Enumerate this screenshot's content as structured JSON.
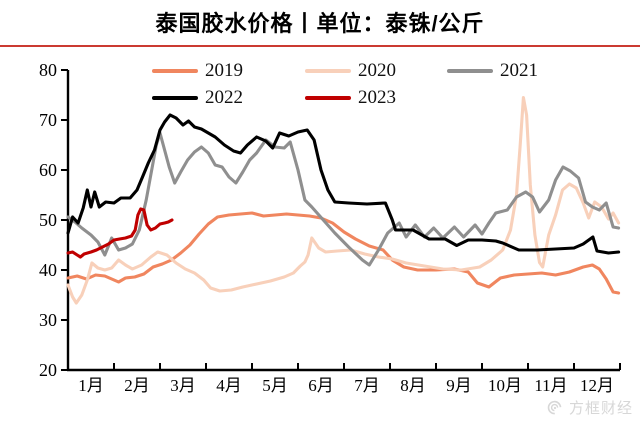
{
  "title": "泰国胶水价格丨单位：泰铢/公斤",
  "title_underline_color": "#cb3a31",
  "watermark": {
    "icon": "swirl-logo-icon",
    "text": "方框财经"
  },
  "chart_data": {
    "type": "line",
    "title": "泰国胶水价格丨单位：泰铢/公斤",
    "xlabel": "",
    "ylabel": "泰铢/公斤",
    "x_unit": "month-of-year",
    "x_tick_labels": [
      "1月",
      "2月",
      "3月",
      "4月",
      "5月",
      "6月",
      "7月",
      "8月",
      "9月",
      "10月",
      "11月",
      "12月"
    ],
    "y_ticks": [
      20,
      30,
      40,
      50,
      60,
      70,
      80
    ],
    "ylim": [
      20,
      80
    ],
    "xlim_months": [
      0,
      12
    ],
    "grid": false,
    "legend_position": "top-inside",
    "axis_color": "#000000",
    "series": [
      {
        "name": "2019",
        "color": "#f0865f",
        "points": [
          [
            0.0,
            38.4
          ],
          [
            0.2,
            38.8
          ],
          [
            0.4,
            38.2
          ],
          [
            0.6,
            39.0
          ],
          [
            0.8,
            38.8
          ],
          [
            1.0,
            38.0
          ],
          [
            1.1,
            37.6
          ],
          [
            1.25,
            38.4
          ],
          [
            1.45,
            38.6
          ],
          [
            1.65,
            39.2
          ],
          [
            1.85,
            40.6
          ],
          [
            2.05,
            41.2
          ],
          [
            2.25,
            42.0
          ],
          [
            2.45,
            43.4
          ],
          [
            2.65,
            45.0
          ],
          [
            2.85,
            47.2
          ],
          [
            3.05,
            49.2
          ],
          [
            3.25,
            50.6
          ],
          [
            3.5,
            51.0
          ],
          [
            3.75,
            51.2
          ],
          [
            4.0,
            51.4
          ],
          [
            4.25,
            50.8
          ],
          [
            4.5,
            51.0
          ],
          [
            4.75,
            51.2
          ],
          [
            5.0,
            51.0
          ],
          [
            5.25,
            50.8
          ],
          [
            5.5,
            50.4
          ],
          [
            5.75,
            49.4
          ],
          [
            6.0,
            47.6
          ],
          [
            6.25,
            46.2
          ],
          [
            6.55,
            44.8
          ],
          [
            6.85,
            44.0
          ],
          [
            7.05,
            42.0
          ],
          [
            7.3,
            40.6
          ],
          [
            7.6,
            40.0
          ],
          [
            8.0,
            40.0
          ],
          [
            8.4,
            40.2
          ],
          [
            8.7,
            39.6
          ],
          [
            8.9,
            37.4
          ],
          [
            9.15,
            36.6
          ],
          [
            9.4,
            38.4
          ],
          [
            9.7,
            39.0
          ],
          [
            10.0,
            39.2
          ],
          [
            10.3,
            39.4
          ],
          [
            10.6,
            39.0
          ],
          [
            10.9,
            39.6
          ],
          [
            11.2,
            40.6
          ],
          [
            11.4,
            41.0
          ],
          [
            11.55,
            40.2
          ],
          [
            11.7,
            38.2
          ],
          [
            11.85,
            35.6
          ],
          [
            11.97,
            35.4
          ]
        ]
      },
      {
        "name": "2020",
        "color": "#f8d0ba",
        "points": [
          [
            0.0,
            37.0
          ],
          [
            0.1,
            34.6
          ],
          [
            0.18,
            33.4
          ],
          [
            0.3,
            35.0
          ],
          [
            0.42,
            38.0
          ],
          [
            0.52,
            41.4
          ],
          [
            0.65,
            40.4
          ],
          [
            0.8,
            40.0
          ],
          [
            0.95,
            40.4
          ],
          [
            1.1,
            42.0
          ],
          [
            1.25,
            41.0
          ],
          [
            1.4,
            40.2
          ],
          [
            1.6,
            41.0
          ],
          [
            1.8,
            42.6
          ],
          [
            1.95,
            43.6
          ],
          [
            2.15,
            43.0
          ],
          [
            2.35,
            41.4
          ],
          [
            2.55,
            40.2
          ],
          [
            2.75,
            39.4
          ],
          [
            2.95,
            38.0
          ],
          [
            3.1,
            36.4
          ],
          [
            3.3,
            35.8
          ],
          [
            3.55,
            36.0
          ],
          [
            3.8,
            36.6
          ],
          [
            4.1,
            37.2
          ],
          [
            4.4,
            37.8
          ],
          [
            4.7,
            38.6
          ],
          [
            4.9,
            39.4
          ],
          [
            5.05,
            40.8
          ],
          [
            5.15,
            41.6
          ],
          [
            5.22,
            43.0
          ],
          [
            5.3,
            46.4
          ],
          [
            5.45,
            44.4
          ],
          [
            5.6,
            43.6
          ],
          [
            5.85,
            43.8
          ],
          [
            6.15,
            44.0
          ],
          [
            6.45,
            43.2
          ],
          [
            6.75,
            42.6
          ],
          [
            7.05,
            42.2
          ],
          [
            7.35,
            41.4
          ],
          [
            7.75,
            40.8
          ],
          [
            8.15,
            40.2
          ],
          [
            8.55,
            40.0
          ],
          [
            8.95,
            40.6
          ],
          [
            9.2,
            42.0
          ],
          [
            9.45,
            44.0
          ],
          [
            9.62,
            48.0
          ],
          [
            9.75,
            55.0
          ],
          [
            9.83,
            65.0
          ],
          [
            9.9,
            74.5
          ],
          [
            9.97,
            71.0
          ],
          [
            10.05,
            57.0
          ],
          [
            10.15,
            47.0
          ],
          [
            10.25,
            41.5
          ],
          [
            10.32,
            40.6
          ],
          [
            10.45,
            47.0
          ],
          [
            10.6,
            51.0
          ],
          [
            10.75,
            56.0
          ],
          [
            10.9,
            57.2
          ],
          [
            11.05,
            56.4
          ],
          [
            11.2,
            53.4
          ],
          [
            11.32,
            50.4
          ],
          [
            11.45,
            53.6
          ],
          [
            11.6,
            52.6
          ],
          [
            11.75,
            50.2
          ],
          [
            11.85,
            51.4
          ],
          [
            11.97,
            49.4
          ]
        ]
      },
      {
        "name": "2021",
        "color": "#8f8f8f",
        "points": [
          [
            0.0,
            50.6
          ],
          [
            0.15,
            49.6
          ],
          [
            0.3,
            48.4
          ],
          [
            0.5,
            47.0
          ],
          [
            0.65,
            45.6
          ],
          [
            0.8,
            43.0
          ],
          [
            0.95,
            46.4
          ],
          [
            1.1,
            44.0
          ],
          [
            1.25,
            44.4
          ],
          [
            1.4,
            45.2
          ],
          [
            1.55,
            48.0
          ],
          [
            1.7,
            54.0
          ],
          [
            1.82,
            60.0
          ],
          [
            1.92,
            65.0
          ],
          [
            2.0,
            67.4
          ],
          [
            2.1,
            64.0
          ],
          [
            2.2,
            60.6
          ],
          [
            2.32,
            57.4
          ],
          [
            2.45,
            59.6
          ],
          [
            2.6,
            62.0
          ],
          [
            2.75,
            63.6
          ],
          [
            2.9,
            64.6
          ],
          [
            3.05,
            63.4
          ],
          [
            3.2,
            61.0
          ],
          [
            3.35,
            60.6
          ],
          [
            3.5,
            58.6
          ],
          [
            3.65,
            57.4
          ],
          [
            3.8,
            59.6
          ],
          [
            3.95,
            62.0
          ],
          [
            4.1,
            63.4
          ],
          [
            4.3,
            66.0
          ],
          [
            4.5,
            64.6
          ],
          [
            4.7,
            64.4
          ],
          [
            4.83,
            65.6
          ],
          [
            5.0,
            60.0
          ],
          [
            5.15,
            54.0
          ],
          [
            5.3,
            52.6
          ],
          [
            5.55,
            50.0
          ],
          [
            5.8,
            47.4
          ],
          [
            6.1,
            44.6
          ],
          [
            6.4,
            42.0
          ],
          [
            6.55,
            41.0
          ],
          [
            6.75,
            44.0
          ],
          [
            6.95,
            47.4
          ],
          [
            7.2,
            49.4
          ],
          [
            7.35,
            46.6
          ],
          [
            7.55,
            49.0
          ],
          [
            7.75,
            46.6
          ],
          [
            7.95,
            48.4
          ],
          [
            8.15,
            46.4
          ],
          [
            8.4,
            48.6
          ],
          [
            8.6,
            46.6
          ],
          [
            8.85,
            49.0
          ],
          [
            9.0,
            47.2
          ],
          [
            9.15,
            49.4
          ],
          [
            9.3,
            51.4
          ],
          [
            9.55,
            52.0
          ],
          [
            9.75,
            54.6
          ],
          [
            9.95,
            55.6
          ],
          [
            10.1,
            54.6
          ],
          [
            10.25,
            51.6
          ],
          [
            10.45,
            54.0
          ],
          [
            10.6,
            58.0
          ],
          [
            10.76,
            60.6
          ],
          [
            10.92,
            59.8
          ],
          [
            11.1,
            58.4
          ],
          [
            11.25,
            53.6
          ],
          [
            11.4,
            52.6
          ],
          [
            11.55,
            52.0
          ],
          [
            11.7,
            53.4
          ],
          [
            11.85,
            48.6
          ],
          [
            11.97,
            48.4
          ]
        ]
      },
      {
        "name": "2022",
        "color": "#000000",
        "points": [
          [
            0.0,
            47.4
          ],
          [
            0.1,
            50.6
          ],
          [
            0.22,
            49.4
          ],
          [
            0.33,
            52.4
          ],
          [
            0.42,
            56.0
          ],
          [
            0.5,
            52.6
          ],
          [
            0.58,
            55.6
          ],
          [
            0.68,
            52.6
          ],
          [
            0.82,
            53.6
          ],
          [
            1.0,
            53.4
          ],
          [
            1.15,
            54.4
          ],
          [
            1.35,
            54.4
          ],
          [
            1.5,
            56.0
          ],
          [
            1.62,
            58.6
          ],
          [
            1.75,
            61.5
          ],
          [
            1.88,
            64.0
          ],
          [
            2.0,
            68.0
          ],
          [
            2.1,
            69.6
          ],
          [
            2.22,
            71.0
          ],
          [
            2.35,
            70.4
          ],
          [
            2.5,
            69.0
          ],
          [
            2.62,
            69.8
          ],
          [
            2.75,
            68.6
          ],
          [
            2.9,
            68.2
          ],
          [
            3.05,
            67.4
          ],
          [
            3.2,
            66.6
          ],
          [
            3.4,
            65.0
          ],
          [
            3.6,
            63.8
          ],
          [
            3.75,
            63.4
          ],
          [
            3.9,
            65.0
          ],
          [
            4.1,
            66.6
          ],
          [
            4.3,
            65.8
          ],
          [
            4.45,
            64.4
          ],
          [
            4.6,
            67.4
          ],
          [
            4.8,
            66.8
          ],
          [
            5.0,
            67.6
          ],
          [
            5.2,
            68.0
          ],
          [
            5.35,
            66.0
          ],
          [
            5.5,
            60.0
          ],
          [
            5.65,
            56.0
          ],
          [
            5.8,
            53.6
          ],
          [
            6.1,
            53.4
          ],
          [
            6.5,
            53.2
          ],
          [
            6.9,
            53.4
          ],
          [
            7.05,
            50.0
          ],
          [
            7.12,
            48.0
          ],
          [
            7.5,
            48.0
          ],
          [
            7.85,
            46.2
          ],
          [
            8.2,
            46.2
          ],
          [
            8.45,
            44.9
          ],
          [
            8.7,
            46.0
          ],
          [
            9.0,
            46.0
          ],
          [
            9.3,
            45.8
          ],
          [
            9.45,
            45.4
          ],
          [
            9.7,
            44.4
          ],
          [
            9.8,
            44.0
          ],
          [
            10.2,
            44.0
          ],
          [
            10.6,
            44.2
          ],
          [
            11.0,
            44.4
          ],
          [
            11.2,
            45.2
          ],
          [
            11.41,
            46.6
          ],
          [
            11.5,
            43.8
          ],
          [
            11.75,
            43.4
          ],
          [
            11.97,
            43.6
          ]
        ]
      },
      {
        "name": "2023",
        "color": "#c00000",
        "points": [
          [
            0.0,
            43.4
          ],
          [
            0.1,
            43.6
          ],
          [
            0.2,
            43.0
          ],
          [
            0.27,
            42.6
          ],
          [
            0.35,
            43.2
          ],
          [
            0.5,
            43.6
          ],
          [
            0.62,
            44.0
          ],
          [
            0.75,
            44.6
          ],
          [
            0.88,
            45.2
          ],
          [
            1.0,
            46.0
          ],
          [
            1.12,
            46.2
          ],
          [
            1.25,
            46.4
          ],
          [
            1.38,
            46.8
          ],
          [
            1.46,
            48.0
          ],
          [
            1.52,
            51.0
          ],
          [
            1.58,
            52.2
          ],
          [
            1.65,
            52.0
          ],
          [
            1.72,
            49.0
          ],
          [
            1.8,
            48.0
          ],
          [
            1.9,
            48.4
          ],
          [
            2.0,
            49.2
          ],
          [
            2.1,
            49.4
          ],
          [
            2.18,
            49.6
          ],
          [
            2.26,
            50.0
          ]
        ]
      }
    ]
  }
}
